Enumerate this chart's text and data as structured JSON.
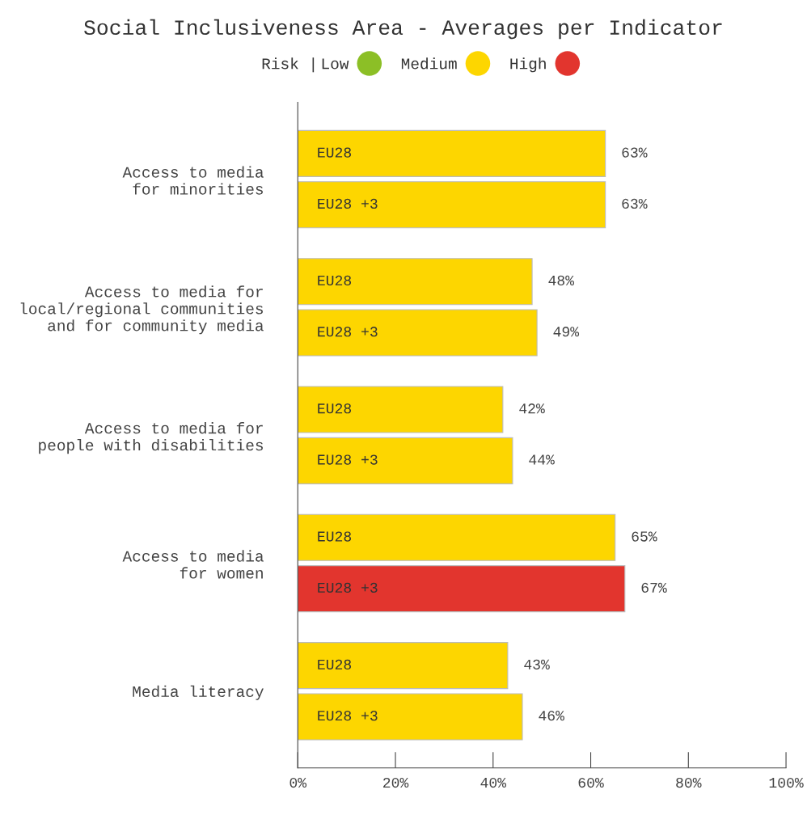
{
  "chart_data": {
    "type": "bar",
    "orientation": "horizontal",
    "title": "Social Inclusiveness Area - Averages per Indicator",
    "categories": [
      "Access to media\nfor minorities",
      "Access to media for\nlocal/regional communities\nand for community media",
      "Access to media for\npeople with disabilities",
      "Access to media\nfor women",
      "Media literacy"
    ],
    "series": [
      {
        "name": "EU28",
        "values": [
          63,
          48,
          42,
          65,
          43
        ],
        "colors": [
          "#fdd600",
          "#fdd600",
          "#fdd600",
          "#fdd600",
          "#fdd600"
        ],
        "value_labels": [
          "63%",
          "48%",
          "42%",
          "65%",
          "43%"
        ]
      },
      {
        "name": "EU28 +3",
        "values": [
          63,
          49,
          44,
          67,
          46
        ],
        "colors": [
          "#fdd600",
          "#fdd600",
          "#fdd600",
          "#e2352e",
          "#fdd600"
        ],
        "value_labels": [
          "63%",
          "49%",
          "44%",
          "67%",
          "46%"
        ]
      },
      {
        "name": "Low",
        "color": "#8cbf26",
        "values": [
          null,
          null,
          null,
          null,
          null
        ]
      },
      {
        "name": "Medium",
        "color": "#fdd600",
        "values": [
          null,
          null,
          null,
          null,
          null
        ]
      },
      {
        "name": "High",
        "color": "#e2352e",
        "values": [
          null,
          null,
          null,
          null,
          null
        ]
      }
    ],
    "legend_title": "Risk |",
    "legend": "top",
    "xlim": [
      0,
      100
    ],
    "xticks": [
      {
        "value": 0,
        "label": "0%"
      },
      {
        "value": 20,
        "label": "20%"
      },
      {
        "value": 40,
        "label": "40%"
      },
      {
        "value": 60,
        "label": "60%"
      },
      {
        "value": 80,
        "label": "80%"
      },
      {
        "value": 100,
        "label": "100%"
      }
    ],
    "grid": false
  }
}
